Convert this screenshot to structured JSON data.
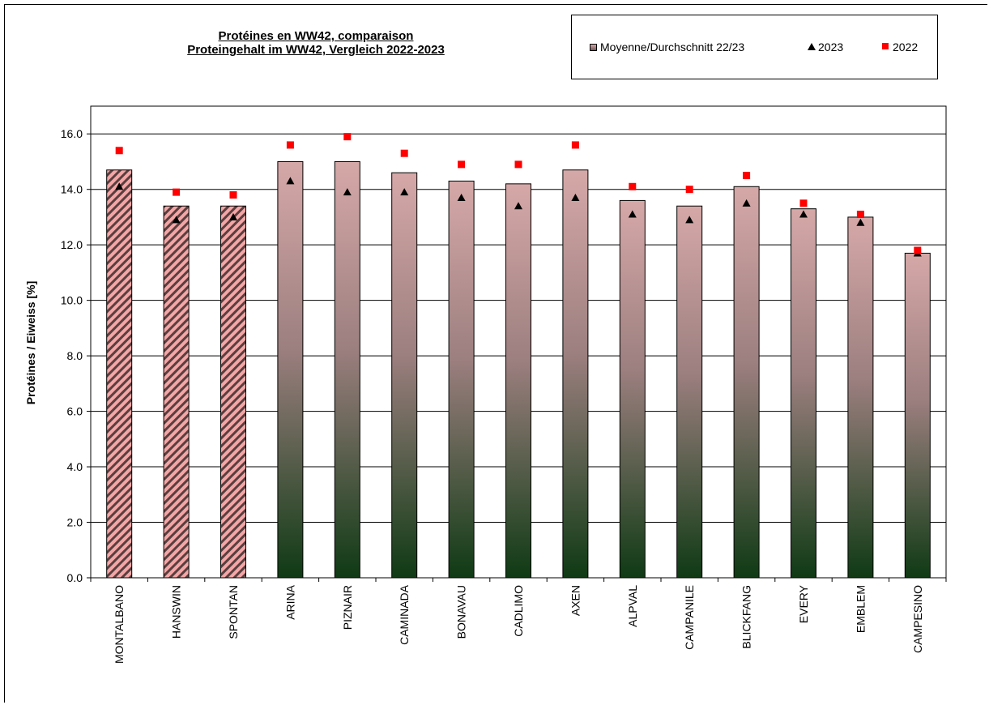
{
  "chart_data": {
    "type": "bar",
    "title": [
      "Protéines  en WW42, comparaison",
      "Proteingehalt im WW42, Vergleich 2022-2023"
    ],
    "xlabel": "",
    "ylabel": "Protéines / Eiweiss [%]",
    "ylim": [
      0,
      17
    ],
    "yticks": [
      "0.0",
      "2.0",
      "4.0",
      "6.0",
      "8.0",
      "10.0",
      "12.0",
      "14.0",
      "16.0"
    ],
    "ytick_values": [
      0,
      2,
      4,
      6,
      8,
      10,
      12,
      14,
      16
    ],
    "grid": "horizontal",
    "legend_position": "top-right",
    "categories": [
      "MONTALBANO",
      "HANSWIN",
      "SPONTAN",
      "ARINA",
      "PIZNAIR",
      "CAMINADA",
      "BONAVAU",
      "CADLIMO",
      "AXEN",
      "ALPVAL",
      "CAMPANILE",
      "BLICKFANG",
      "EVERY",
      "EMBLEM",
      "CAMPESINO"
    ],
    "hatched_categories": [
      "MONTALBANO",
      "HANSWIN",
      "SPONTAN"
    ],
    "series": [
      {
        "name": "Moyenne/Durchschnitt 22/23",
        "kind": "bar",
        "values": [
          14.7,
          13.4,
          13.4,
          15.0,
          15.0,
          14.6,
          14.3,
          14.2,
          14.7,
          13.6,
          13.4,
          14.1,
          13.3,
          13.0,
          11.7
        ]
      },
      {
        "name": "2023",
        "kind": "triangle-marker",
        "values": [
          14.1,
          12.9,
          13.0,
          14.3,
          13.9,
          13.9,
          13.7,
          13.4,
          13.7,
          13.1,
          12.9,
          13.5,
          13.1,
          12.8,
          11.7
        ]
      },
      {
        "name": "2022",
        "kind": "square-marker",
        "values": [
          15.4,
          13.9,
          13.8,
          15.6,
          15.9,
          15.3,
          14.9,
          14.9,
          15.6,
          14.1,
          14.0,
          14.5,
          13.5,
          13.1,
          11.8
        ]
      }
    ],
    "colors": {
      "bar_top": "#d6a8a8",
      "bar_mid": "#9c7f7f",
      "bar_bottom": "#0f3a14",
      "hatch_light": "#f4a6a6",
      "hatch_dark": "#5a3f3f",
      "marker_2023": "#000000",
      "marker_2022": "#ff0000"
    }
  }
}
